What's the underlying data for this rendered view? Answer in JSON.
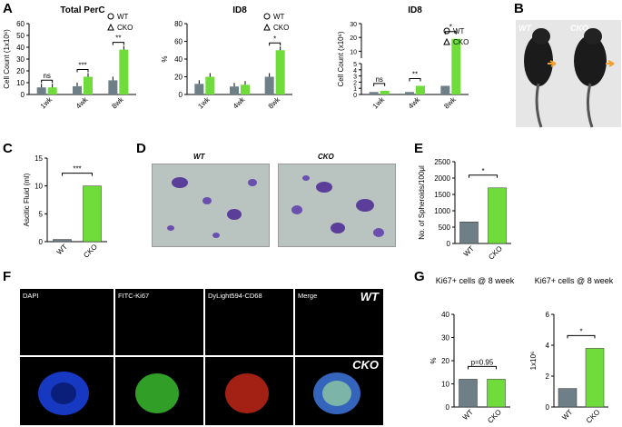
{
  "panel_labels": {
    "a": "A",
    "b": "B",
    "c": "C",
    "d": "D",
    "e": "E",
    "f": "F",
    "g": "G"
  },
  "colors": {
    "wt": "#6e7f87",
    "cko": "#6fdc3c"
  },
  "chart_data": [
    {
      "id": "A1",
      "type": "bar",
      "title": "Total PerC",
      "ylabel": "Cell Count (1x10⁶)",
      "ylim": [
        0,
        60
      ],
      "yticks": [
        "0",
        "10",
        "20",
        "30",
        "40",
        "50",
        "60"
      ],
      "categories": [
        "1wk",
        "4wk",
        "8wk"
      ],
      "series": [
        {
          "name": "WT",
          "values": [
            6,
            7,
            12
          ]
        },
        {
          "name": "CKO",
          "values": [
            6,
            15,
            38
          ]
        }
      ],
      "legend": [
        "WT",
        "CKO"
      ],
      "significance": [
        "ns",
        "***",
        "**"
      ]
    },
    {
      "id": "A2",
      "type": "bar",
      "title": "ID8",
      "ylabel": "%",
      "ylim": [
        0,
        80
      ],
      "yticks": [
        "0",
        "20",
        "40",
        "60",
        "80"
      ],
      "categories": [
        "1wk",
        "4wk",
        "8wk"
      ],
      "series": [
        {
          "name": "WT",
          "values": [
            12,
            9,
            20
          ]
        },
        {
          "name": "CKO",
          "values": [
            20,
            11,
            50
          ]
        }
      ],
      "legend": [
        "WT",
        "CKO"
      ],
      "significance": [
        "",
        "",
        "*"
      ]
    },
    {
      "id": "A3",
      "type": "bar",
      "title": "ID8",
      "ylabel": "Cell Count (x10⁶)",
      "yscale": "broken",
      "yticks": [
        "0",
        "1",
        "2",
        "3",
        "4",
        "5",
        "10",
        "20",
        "30"
      ],
      "categories": [
        "1wk",
        "4wk",
        "8wk"
      ],
      "series": [
        {
          "name": "WT",
          "values": [
            0.4,
            0.4,
            1.4
          ]
        },
        {
          "name": "CKO",
          "values": [
            0.6,
            1.4,
            19
          ]
        }
      ],
      "legend": [
        "WT",
        "CKO"
      ],
      "significance": [
        "ns",
        "**",
        "*"
      ]
    },
    {
      "id": "C",
      "type": "bar",
      "ylabel": "Ascitic Fluid (ml)",
      "ylim": [
        0,
        15
      ],
      "yticks": [
        "0",
        "5",
        "10",
        "15"
      ],
      "categories": [
        "WT",
        "CKO"
      ],
      "values": [
        0.4,
        10
      ],
      "significance": "***"
    },
    {
      "id": "E",
      "type": "bar",
      "ylabel": "No. of Spheroids/100μl",
      "ylim": [
        0,
        2500
      ],
      "yticks": [
        "0",
        "500",
        "1000",
        "1500",
        "2000",
        "2500"
      ],
      "categories": [
        "WT",
        "CKO"
      ],
      "values": [
        660,
        1700
      ],
      "significance": "*"
    },
    {
      "id": "G1",
      "type": "bar",
      "title": "Ki67+ cells @ 8 week",
      "ylabel": "%",
      "ylim": [
        0,
        40
      ],
      "yticks": [
        "0",
        "10",
        "20",
        "30",
        "40"
      ],
      "categories": [
        "WT",
        "CKO"
      ],
      "values": [
        12,
        12
      ],
      "significance": "p=0.95"
    },
    {
      "id": "G2",
      "type": "bar",
      "title": "Ki67+ cells @ 8 week",
      "ylabel": "1x10⁶",
      "ylim": [
        0,
        6
      ],
      "yticks": [
        "0",
        "2",
        "4",
        "6"
      ],
      "categories": [
        "WT",
        "CKO"
      ],
      "values": [
        1.2,
        3.8
      ],
      "significance": "*"
    }
  ],
  "mouse_photos": {
    "wt": "WT",
    "cko": "CKO"
  },
  "micrographs": {
    "wt": "WT",
    "cko": "CKO"
  },
  "fluorescence": {
    "labels": [
      "DAPI",
      "FITC-Ki67",
      "DyLight594-CD68",
      "Merge"
    ],
    "wt": "WT",
    "cko": "CKO"
  }
}
